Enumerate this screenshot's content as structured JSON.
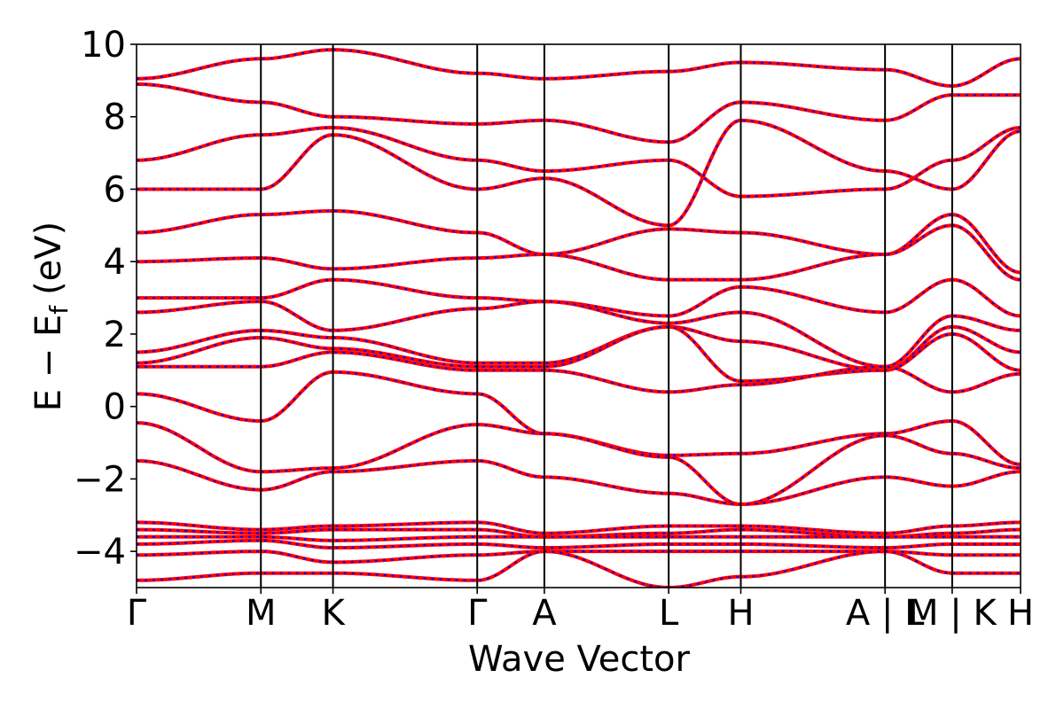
{
  "chart_data": {
    "type": "line",
    "title": "",
    "xlabel": "Wave Vector",
    "ylabel": "E − E",
    "ylabel_subscript": "f",
    "ylabel_unit": "(eV)",
    "ylim": [
      -5,
      10
    ],
    "yticks": [
      -4,
      -2,
      0,
      2,
      4,
      6,
      8,
      10
    ],
    "ytick_labels": [
      "−4",
      "−2",
      "0",
      "2",
      "4",
      "6",
      "8",
      "10"
    ],
    "xlim": [
      0,
      7.11
    ],
    "kpoints": [
      {
        "x": 0.0,
        "label": "Γ"
      },
      {
        "x": 1.0,
        "label": "M"
      },
      {
        "x": 1.58,
        "label": "K"
      },
      {
        "x": 2.74,
        "label": "Γ"
      },
      {
        "x": 3.28,
        "label": "A"
      },
      {
        "x": 4.28,
        "label": "L"
      },
      {
        "x": 4.86,
        "label": "H"
      },
      {
        "x": 6.02,
        "label": "A | L"
      },
      {
        "x": 6.56,
        "label": "M | K"
      },
      {
        "x": 7.11,
        "label": "H"
      }
    ],
    "vlines": [
      1.0,
      1.58,
      2.74,
      3.28,
      4.28,
      4.86,
      6.02,
      6.56
    ],
    "grid": false,
    "series": [
      {
        "color": "#ff0000",
        "style": "solid",
        "values": [
          [
            9.05,
            9.6,
            9.85,
            9.2,
            9.05,
            9.25,
            9.5,
            9.3,
            8.85,
            9.6,
            9.1
          ],
          [
            8.9,
            8.4,
            8.0,
            7.8,
            7.9,
            7.3,
            8.4,
            7.9,
            8.6,
            8.6,
            8.0
          ],
          [
            6.8,
            7.5,
            7.7,
            6.8,
            6.5,
            6.8,
            5.8,
            6.0,
            6.8,
            7.7,
            7.9
          ],
          [
            6.0,
            6.0,
            7.5,
            6.0,
            6.3,
            5.0,
            7.9,
            6.5,
            6.0,
            7.6,
            5.8
          ],
          [
            4.8,
            5.3,
            5.4,
            4.8,
            4.2,
            4.9,
            4.8,
            4.2,
            5.3,
            3.7,
            4.9
          ],
          [
            4.0,
            4.1,
            3.8,
            4.1,
            4.2,
            3.5,
            3.5,
            4.2,
            5.0,
            3.5,
            4.4
          ],
          [
            3.0,
            3.0,
            3.5,
            3.0,
            2.9,
            2.5,
            3.3,
            2.6,
            3.5,
            2.5,
            3.3
          ],
          [
            2.6,
            2.9,
            2.1,
            2.7,
            2.9,
            2.3,
            2.6,
            1.1,
            2.5,
            2.1,
            2.8
          ],
          [
            1.5,
            2.1,
            1.9,
            1.2,
            1.2,
            2.2,
            1.8,
            1.0,
            2.2,
            1.5,
            1.8
          ],
          [
            1.2,
            1.9,
            1.6,
            1.1,
            1.1,
            2.2,
            0.7,
            1.0,
            2.0,
            1.0,
            1.0
          ],
          [
            1.1,
            1.1,
            1.5,
            1.0,
            1.0,
            0.4,
            0.6,
            1.1,
            0.4,
            0.9,
            0.7
          ],
          [
            0.35,
            -0.4,
            0.95,
            0.35,
            -0.75,
            -1.35,
            -1.3,
            -0.75,
            -0.4,
            -1.6,
            -1.3
          ],
          [
            -0.45,
            -1.8,
            -1.7,
            -0.5,
            -0.75,
            -1.4,
            -2.7,
            -0.8,
            -1.3,
            -1.7,
            -2.7
          ],
          [
            -1.5,
            -2.3,
            -1.8,
            -1.5,
            -1.95,
            -2.4,
            -2.7,
            -1.95,
            -2.2,
            -1.8,
            -2.7
          ],
          [
            -3.2,
            -3.4,
            -3.3,
            -3.2,
            -3.5,
            -3.3,
            -3.3,
            -3.5,
            -3.3,
            -3.2,
            -3.3
          ],
          [
            -3.4,
            -3.5,
            -3.4,
            -3.4,
            -3.6,
            -3.5,
            -3.4,
            -3.6,
            -3.5,
            -3.4,
            -3.5
          ],
          [
            -3.6,
            -3.6,
            -3.7,
            -3.6,
            -3.6,
            -3.6,
            -3.6,
            -3.6,
            -3.6,
            -3.6,
            -3.6
          ],
          [
            -3.8,
            -3.7,
            -3.9,
            -3.8,
            -3.9,
            -3.8,
            -3.8,
            -3.9,
            -3.8,
            -3.8,
            -3.8
          ],
          [
            -4.1,
            -4.0,
            -4.3,
            -4.1,
            -4.0,
            -4.0,
            -4.0,
            -4.0,
            -4.1,
            -4.1,
            -4.0
          ],
          [
            -4.8,
            -4.6,
            -4.6,
            -4.8,
            -4.0,
            -5.0,
            -4.7,
            -4.0,
            -4.6,
            -4.6,
            -4.7
          ]
        ]
      }
    ]
  }
}
